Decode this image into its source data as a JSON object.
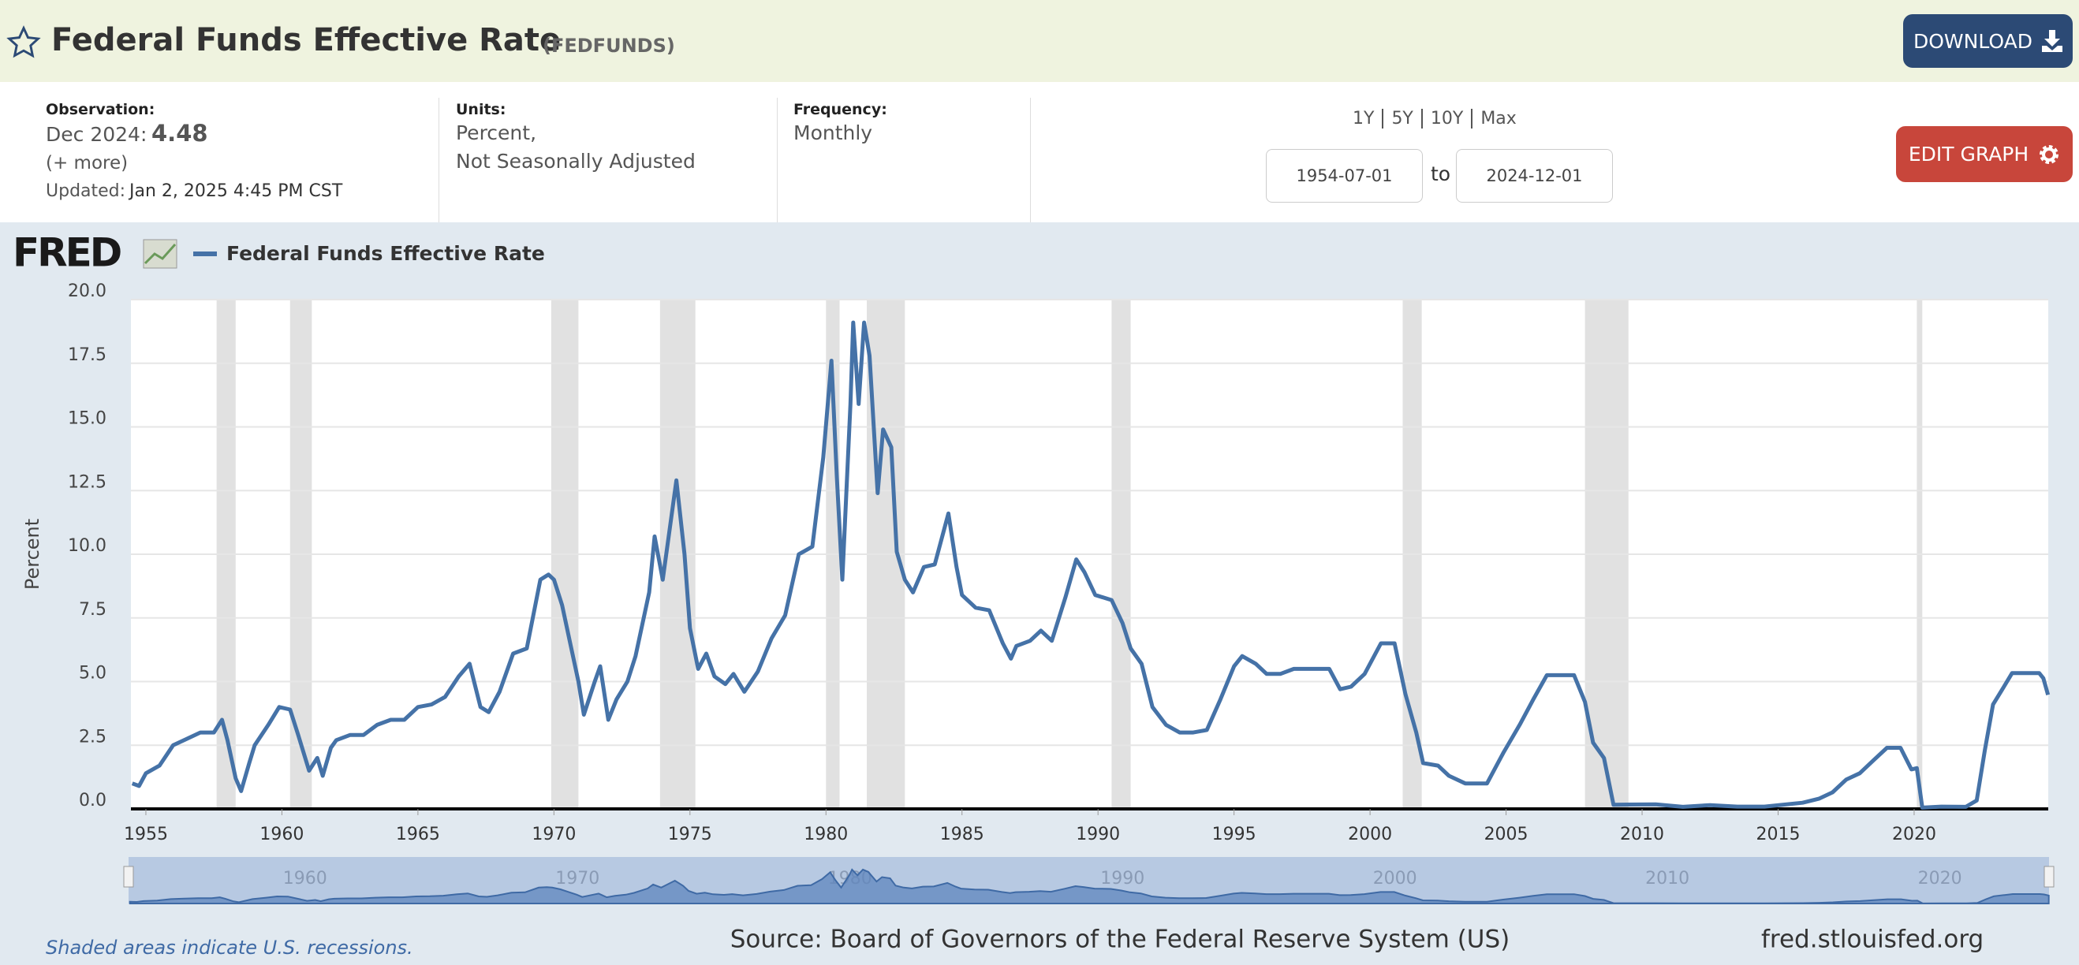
{
  "header": {
    "title": "Federal Funds Effective Rate",
    "series_id": "(FEDFUNDS)",
    "download": "DOWNLOAD"
  },
  "info": {
    "observation_label": "Observation:",
    "observation_date": "Dec 2024:",
    "observation_value": 4.48,
    "more": "(+ more)",
    "updated_label": "Updated:",
    "updated": "Jan 2, 2025 4:45 PM CST",
    "units_label": "Units:",
    "units": [
      "Percent,",
      "Not Seasonally Adjusted"
    ],
    "frequency_label": "Frequency:",
    "frequency": "Monthly",
    "ranges": [
      "1Y",
      "5Y",
      "10Y",
      "Max"
    ],
    "start": "1954-07-01",
    "to": "to",
    "end": "2024-12-01",
    "edit": "EDIT GRAPH"
  },
  "logo": "FRED",
  "chart_data": {
    "type": "line",
    "y_label": "Percent",
    "x": [
      1954.5,
      1954.75,
      1955,
      1955.5,
      1956,
      1956.5,
      1957,
      1957.5,
      1957.8,
      1958,
      1958.3,
      1958.5,
      1958.8,
      1959,
      1959.5,
      1959.9,
      1960.3,
      1960.6,
      1961,
      1961.3,
      1961.5,
      1961.8,
      1962,
      1962.5,
      1963,
      1963.5,
      1964,
      1964.5,
      1965,
      1965.5,
      1966,
      1966.5,
      1966.9,
      1967.3,
      1967.6,
      1968,
      1968.5,
      1969,
      1969.5,
      1969.8,
      1970,
      1970.3,
      1970.6,
      1970.9,
      1971.1,
      1971.5,
      1971.7,
      1972,
      1972.3,
      1972.7,
      1973,
      1973.5,
      1973.7,
      1974,
      1974.5,
      1974.8,
      1975,
      1975.3,
      1975.6,
      1975.9,
      1976.3,
      1976.6,
      1977,
      1977.5,
      1978,
      1978.5,
      1979,
      1979.5,
      1979.9,
      1980.2,
      1980.4,
      1980.6,
      1980.9,
      1981,
      1981.2,
      1981.4,
      1981.6,
      1981.9,
      1982.1,
      1982.4,
      1982.6,
      1982.9,
      1983.2,
      1983.6,
      1984,
      1984.5,
      1984.8,
      1985,
      1985.5,
      1986,
      1986.5,
      1986.8,
      1987,
      1987.5,
      1987.9,
      1988.3,
      1988.8,
      1989.2,
      1989.5,
      1989.9,
      1990.5,
      1990.9,
      1991.2,
      1991.6,
      1992,
      1992.5,
      1993,
      1993.5,
      1994,
      1994.5,
      1995,
      1995.3,
      1995.8,
      1996.2,
      1996.7,
      1997.2,
      1997.7,
      1998.5,
      1998.9,
      1999.3,
      1999.8,
      2000.4,
      2000.9,
      2001.3,
      2001.7,
      2001.95,
      2002.5,
      2002.9,
      2003.5,
      2004.3,
      2004.9,
      2005.5,
      2006,
      2006.5,
      2007.5,
      2007.9,
      2008.2,
      2008.6,
      2008.95,
      2009.5,
      2010.5,
      2011.5,
      2012.5,
      2013.5,
      2014.5,
      2015.9,
      2016.5,
      2017,
      2017.5,
      2018,
      2018.5,
      2019,
      2019.5,
      2019.9,
      2020.1,
      2020.3,
      2021,
      2021.9,
      2022.3,
      2022.6,
      2022.9,
      2023.3,
      2023.6,
      2024.6,
      2024.75,
      2024.92
    ],
    "series": [
      {
        "name": "Federal Funds Effective Rate",
        "color": "#4572a7",
        "values": [
          1.0,
          0.9,
          1.4,
          1.7,
          2.5,
          2.75,
          3.0,
          3.0,
          3.5,
          2.7,
          1.2,
          0.7,
          1.8,
          2.5,
          3.3,
          4.0,
          3.9,
          2.9,
          1.5,
          2.0,
          1.3,
          2.4,
          2.7,
          2.9,
          2.9,
          3.3,
          3.5,
          3.5,
          4.0,
          4.1,
          4.4,
          5.2,
          5.7,
          4.0,
          3.8,
          4.6,
          6.1,
          6.3,
          9.0,
          9.2,
          9.0,
          8.0,
          6.5,
          5.0,
          3.7,
          5.0,
          5.6,
          3.5,
          4.3,
          5.0,
          6.0,
          8.5,
          10.7,
          9.0,
          12.9,
          10.0,
          7.1,
          5.5,
          6.1,
          5.2,
          4.9,
          5.3,
          4.6,
          5.4,
          6.7,
          7.6,
          10.0,
          10.3,
          13.8,
          17.6,
          13.0,
          9.0,
          15.9,
          19.1,
          15.9,
          19.1,
          17.8,
          12.4,
          14.9,
          14.2,
          10.1,
          9.0,
          8.5,
          9.5,
          9.6,
          11.6,
          9.5,
          8.4,
          7.9,
          7.8,
          6.5,
          5.9,
          6.4,
          6.6,
          7.0,
          6.6,
          8.3,
          9.8,
          9.3,
          8.4,
          8.2,
          7.3,
          6.3,
          5.7,
          4.0,
          3.3,
          3.0,
          3.0,
          3.1,
          4.3,
          5.6,
          6.0,
          5.7,
          5.3,
          5.3,
          5.5,
          5.5,
          5.5,
          4.7,
          4.8,
          5.3,
          6.5,
          6.5,
          4.5,
          3.0,
          1.8,
          1.7,
          1.3,
          1.0,
          1.0,
          2.2,
          3.3,
          4.3,
          5.25,
          5.25,
          4.2,
          2.6,
          2.0,
          0.16,
          0.17,
          0.18,
          0.08,
          0.15,
          0.09,
          0.09,
          0.24,
          0.4,
          0.65,
          1.15,
          1.4,
          1.9,
          2.4,
          2.4,
          1.55,
          1.6,
          0.05,
          0.09,
          0.08,
          0.33,
          2.3,
          4.1,
          4.8,
          5.33,
          5.33,
          5.13,
          4.48
        ]
      }
    ],
    "recessions": [
      [
        1957.6,
        1958.3
      ],
      [
        1960.3,
        1961.1
      ],
      [
        1969.9,
        1970.9
      ],
      [
        1973.9,
        1975.2
      ],
      [
        1980.0,
        1980.5
      ],
      [
        1981.5,
        1982.9
      ],
      [
        1990.5,
        1991.2
      ],
      [
        2001.2,
        2001.9
      ],
      [
        2007.9,
        2009.5
      ],
      [
        2020.1,
        2020.3
      ]
    ],
    "recession_color": "#e1e1e1",
    "xlim": [
      1954.45,
      2024.93
    ],
    "xticks": [
      1955,
      1960,
      1965,
      1970,
      1975,
      1980,
      1985,
      1990,
      1995,
      2000,
      2005,
      2010,
      2015,
      2020
    ],
    "ylim": [
      0,
      20
    ],
    "yticks": [
      {
        "value": 0,
        "label": "0.0"
      },
      2.5,
      {
        "value": 5,
        "label": "5.0"
      },
      7.5,
      {
        "value": 10,
        "label": "10.0"
      },
      12.5,
      {
        "value": 15,
        "label": "15.0"
      },
      17.5,
      {
        "value": 20,
        "label": "20.0"
      }
    ],
    "grid": true,
    "navigator_ticks": [
      1960,
      1970,
      1980,
      1990,
      2000,
      2010,
      2020
    ]
  },
  "footer": {
    "note": "Shaded areas indicate U.S. recessions.",
    "source": "Source: Board of Governors of the Federal Reserve System (US)",
    "site": "fred.stlouisfed.org"
  }
}
